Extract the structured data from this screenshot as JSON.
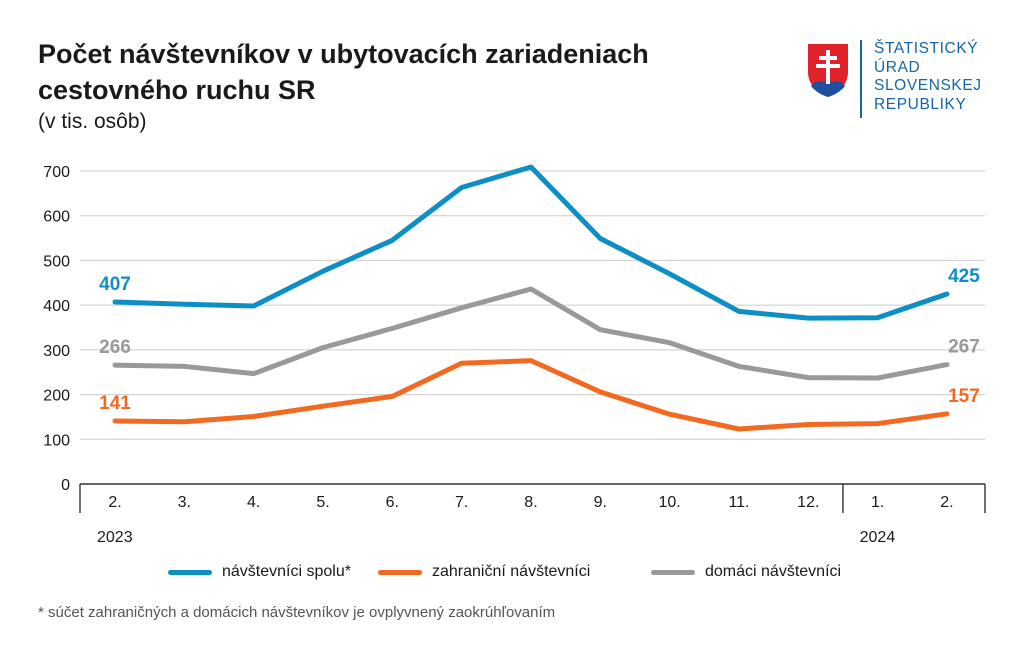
{
  "title_line1": "Počet návštevníkov v ubytovacích zariadeniach",
  "title_line2": "cestovného ruchu SR",
  "subtitle": "(v tis. osôb)",
  "logo": {
    "line1": "ŠTATISTICKÝ",
    "line2": "ÚRAD",
    "line3": "SLOVENSKEJ",
    "line4": "REPUBLIKY",
    "color": "#1565a8"
  },
  "footnote": "* súčet zahraničných a domácich návštevníkov je ovplyvnený zaokrúhľovaním",
  "chart_data": {
    "type": "line",
    "title": "Počet návštevníkov v ubytovacích zariadeniach cestovného ruchu SR",
    "subtitle": "(v tis. osôb)",
    "categories": [
      "2.",
      "3.",
      "4.",
      "5.",
      "6.",
      "7.",
      "8.",
      "9.",
      "10.",
      "11.",
      "12.",
      "1.",
      "2."
    ],
    "year_labels": [
      {
        "label": "2023",
        "start_index": 0
      },
      {
        "label": "2024",
        "start_index": 11
      }
    ],
    "ylim": [
      0,
      700
    ],
    "yticks": [
      0,
      100,
      200,
      300,
      400,
      500,
      600,
      700
    ],
    "grid": true,
    "legend_position": "bottom",
    "series": [
      {
        "name": "návštevníci spolu*",
        "color": "#0d8fc6",
        "values": [
          407,
          402,
          398,
          476,
          545,
          663,
          709,
          549,
          470,
          386,
          371,
          372,
          425
        ],
        "first_label": "407",
        "last_label": "425"
      },
      {
        "name": "zahraniční návštevníci",
        "color": "#f26a21",
        "values": [
          141,
          139,
          151,
          174,
          196,
          270,
          276,
          206,
          156,
          123,
          133,
          135,
          157
        ],
        "first_label": "141",
        "last_label": "157"
      },
      {
        "name": "domáci návštevníci",
        "color": "#999999",
        "values": [
          266,
          263,
          247,
          305,
          348,
          394,
          436,
          345,
          316,
          263,
          238,
          237,
          267
        ],
        "first_label": "266",
        "last_label": "267"
      }
    ]
  }
}
